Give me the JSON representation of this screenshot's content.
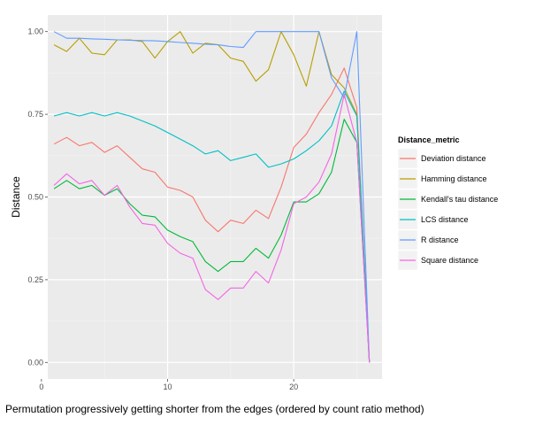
{
  "chart_data": {
    "type": "line",
    "xlabel": "Permutation progressively getting shorter from the edges (ordered by count ratio method)",
    "ylabel": "Distance",
    "xlim": [
      0.5,
      27
    ],
    "ylim": [
      -0.05,
      1.05
    ],
    "x_ticks": [
      0,
      10,
      20
    ],
    "x_tick_labels": [
      "0",
      "10",
      "20"
    ],
    "y_ticks": [
      0,
      0.25,
      0.5,
      0.75,
      1.0
    ],
    "y_tick_labels": [
      "0.00",
      "0.25",
      "0.50",
      "0.75",
      "1.00"
    ],
    "grid": true,
    "legend": {
      "title": "Distance_metric",
      "position": "right"
    },
    "x": [
      1,
      2,
      3,
      4,
      5,
      6,
      7,
      8,
      9,
      10,
      11,
      12,
      13,
      14,
      15,
      16,
      17,
      18,
      19,
      20,
      21,
      22,
      23,
      24,
      25,
      26
    ],
    "series": [
      {
        "name": "Deviation distance",
        "color": "#F8766D",
        "values": [
          0.66,
          0.68,
          0.655,
          0.665,
          0.635,
          0.655,
          0.62,
          0.585,
          0.575,
          0.53,
          0.52,
          0.5,
          0.43,
          0.395,
          0.43,
          0.42,
          0.46,
          0.435,
          0.53,
          0.65,
          0.69,
          0.755,
          0.81,
          0.89,
          0.77,
          0.0
        ]
      },
      {
        "name": "Hamming distance",
        "color": "#B79F00",
        "values": [
          0.96,
          0.94,
          0.98,
          0.935,
          0.93,
          0.975,
          0.975,
          0.97,
          0.92,
          0.97,
          1.0,
          0.935,
          0.965,
          0.96,
          0.92,
          0.91,
          0.85,
          0.885,
          1.0,
          0.93,
          0.835,
          1.0,
          0.87,
          0.83,
          0.75,
          0.0
        ]
      },
      {
        "name": "Kendall's tau distance",
        "color": "#00BA38",
        "values": [
          0.525,
          0.55,
          0.525,
          0.535,
          0.505,
          0.525,
          0.48,
          0.445,
          0.44,
          0.4,
          0.38,
          0.365,
          0.305,
          0.275,
          0.305,
          0.305,
          0.345,
          0.315,
          0.385,
          0.485,
          0.485,
          0.51,
          0.575,
          0.735,
          0.665,
          0.0
        ]
      },
      {
        "name": "LCS distance",
        "color": "#00BFC4",
        "values": [
          0.745,
          0.755,
          0.745,
          0.755,
          0.745,
          0.755,
          0.745,
          0.73,
          0.715,
          0.695,
          0.675,
          0.655,
          0.63,
          0.64,
          0.61,
          0.62,
          0.63,
          0.59,
          0.6,
          0.615,
          0.64,
          0.67,
          0.715,
          0.82,
          0.745,
          0.0
        ]
      },
      {
        "name": "R distance",
        "color": "#619CFF",
        "values": [
          1.0,
          0.98,
          0.98,
          0.978,
          0.977,
          0.975,
          0.974,
          0.973,
          0.972,
          0.97,
          0.967,
          0.965,
          0.962,
          0.96,
          0.955,
          0.952,
          1.0,
          1.0,
          1.0,
          1.0,
          1.0,
          1.0,
          0.86,
          0.8,
          1.0,
          0.0
        ]
      },
      {
        "name": "Square distance",
        "color": "#F564E3",
        "values": [
          0.535,
          0.57,
          0.54,
          0.55,
          0.505,
          0.535,
          0.47,
          0.42,
          0.415,
          0.36,
          0.33,
          0.315,
          0.22,
          0.19,
          0.225,
          0.225,
          0.275,
          0.24,
          0.34,
          0.48,
          0.5,
          0.545,
          0.63,
          0.81,
          0.665,
          0.0
        ]
      }
    ]
  }
}
